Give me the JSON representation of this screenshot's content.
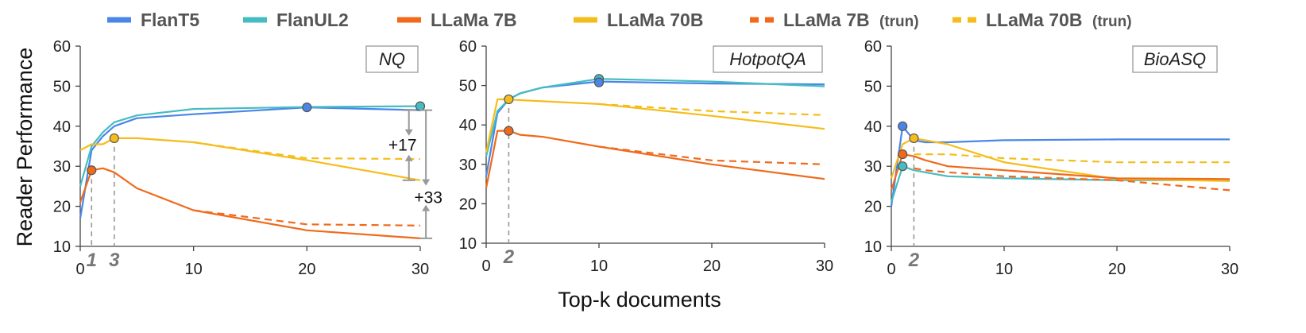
{
  "chart_data": {
    "type": "line",
    "xlabel": "Top-k documents",
    "ylabel": "Reader Performance",
    "legend_position": "top",
    "legend": [
      {
        "name": "FlanT5",
        "color": "#4a86e8",
        "dashed": false,
        "suffix": ""
      },
      {
        "name": "FlanUL2",
        "color": "#45bcc2",
        "dashed": false,
        "suffix": ""
      },
      {
        "name": "LLaMa 7B",
        "color": "#f06a1c",
        "dashed": false,
        "suffix": ""
      },
      {
        "name": "LLaMa 70B",
        "color": "#f5bd1b",
        "dashed": false,
        "suffix": ""
      },
      {
        "name": "LLaMa 7B",
        "color": "#f06a1c",
        "dashed": true,
        "suffix": "(trun)"
      },
      {
        "name": "LLaMa 70B",
        "color": "#f5bd1b",
        "dashed": true,
        "suffix": "(trun)"
      }
    ],
    "panels": [
      {
        "title": "NQ",
        "xlim": [
          0,
          30
        ],
        "ylim": [
          10,
          60
        ],
        "xticks": [
          0,
          10,
          20,
          30
        ],
        "yticks": [
          10,
          20,
          30,
          40,
          50,
          60
        ],
        "series": [
          {
            "color": "#4a86e8",
            "dashed": false,
            "x": [
              0,
              1,
              2,
              3,
              5,
              10,
              20,
              30
            ],
            "y": [
              17,
              34,
              37.5,
              40,
              42,
              43,
              44.7,
              44
            ]
          },
          {
            "color": "#45bcc2",
            "dashed": false,
            "x": [
              0,
              1,
              2,
              3,
              5,
              10,
              20,
              30
            ],
            "y": [
              25,
              35,
              38.5,
              41,
              42.7,
              44.3,
              44.8,
              45
            ]
          },
          {
            "color": "#f5bd1b",
            "dashed": false,
            "x": [
              0,
              1,
              2,
              3,
              5,
              10,
              20,
              30
            ],
            "y": [
              34,
              35.5,
              35.5,
              37,
              37,
              36,
              31.5,
              26.5
            ]
          },
          {
            "color": "#f06a1c",
            "dashed": false,
            "x": [
              0,
              1,
              2,
              3,
              5,
              10,
              20,
              30
            ],
            "y": [
              21,
              29,
              29.5,
              28.5,
              24.5,
              19,
              14,
              12
            ]
          },
          {
            "color": "#f06a1c",
            "dashed": true,
            "x": [
              10,
              20,
              30
            ],
            "y": [
              19,
              15.5,
              15.2
            ]
          },
          {
            "color": "#f5bd1b",
            "dashed": true,
            "x": [
              10,
              20,
              30
            ],
            "y": [
              36,
              32,
              31.8
            ]
          }
        ],
        "markers": [
          {
            "x": 1,
            "y": 29,
            "color": "#f06a1c"
          },
          {
            "x": 3,
            "y": 37,
            "color": "#f5bd1b"
          },
          {
            "x": 20,
            "y": 44.7,
            "color": "#4a86e8"
          },
          {
            "x": 30,
            "y": 45,
            "color": "#45bcc2"
          }
        ],
        "k_lines": [
          {
            "x": 1,
            "y": 29,
            "label": "1"
          },
          {
            "x": 3,
            "y": 37,
            "label": "3"
          }
        ],
        "annotations": [
          {
            "text": "+17",
            "x": 29,
            "y_from": 44,
            "y_to": 26.5
          },
          {
            "text": "+33",
            "x": 30.5,
            "y_from": 44,
            "y_to": 12
          }
        ]
      },
      {
        "title": "HotpotQA",
        "xlim": [
          0,
          30
        ],
        "ylim": [
          10,
          60
        ],
        "xticks": [
          0,
          10,
          20,
          30
        ],
        "yticks": [
          10,
          20,
          30,
          40,
          50,
          60
        ],
        "series": [
          {
            "color": "#4a86e8",
            "dashed": false,
            "x": [
              0,
              1,
              2,
              3,
              5,
              10,
              20,
              30
            ],
            "y": [
              27,
              43,
              46.5,
              48,
              49.5,
              51,
              50.5,
              50.3
            ]
          },
          {
            "color": "#45bcc2",
            "dashed": false,
            "x": [
              0,
              1,
              2,
              3,
              5,
              10,
              20,
              30
            ],
            "y": [
              32,
              43.5,
              46.5,
              48,
              49.5,
              51.7,
              51,
              49.8
            ]
          },
          {
            "color": "#f5bd1b",
            "dashed": false,
            "x": [
              0,
              1,
              2,
              3,
              5,
              10,
              20,
              30
            ],
            "y": [
              33,
              46.5,
              46.5,
              46.3,
              46,
              45.3,
              42.3,
              39
            ]
          },
          {
            "color": "#f06a1c",
            "dashed": false,
            "x": [
              0,
              1,
              2,
              3,
              5,
              10,
              20,
              30
            ],
            "y": [
              24,
              38.5,
              38.5,
              37.5,
              37,
              34.5,
              30,
              26.3
            ]
          },
          {
            "color": "#f06a1c",
            "dashed": true,
            "x": [
              10,
              20,
              30
            ],
            "y": [
              34.5,
              31,
              30
            ]
          },
          {
            "color": "#f5bd1b",
            "dashed": true,
            "x": [
              10,
              20,
              30
            ],
            "y": [
              45.3,
              43.5,
              42.5
            ]
          }
        ],
        "markers": [
          {
            "x": 2,
            "y": 38.5,
            "color": "#f06a1c"
          },
          {
            "x": 2,
            "y": 46.5,
            "color": "#f5bd1b"
          },
          {
            "x": 10,
            "y": 51.7,
            "color": "#45bcc2"
          },
          {
            "x": 10,
            "y": 50.8,
            "color": "#4a86e8"
          }
        ],
        "k_lines": [
          {
            "x": 2,
            "y": 46.5,
            "label": "2"
          }
        ],
        "annotations": []
      },
      {
        "title": "BioASQ",
        "xlim": [
          0,
          30
        ],
        "ylim": [
          10,
          60
        ],
        "xticks": [
          0,
          10,
          20,
          30
        ],
        "yticks": [
          10,
          20,
          30,
          40,
          50,
          60
        ],
        "series": [
          {
            "color": "#4a86e8",
            "dashed": false,
            "x": [
              0,
              1,
              2,
              3,
              5,
              10,
              20,
              30
            ],
            "y": [
              20,
              40,
              36.5,
              36,
              36,
              36.5,
              36.7,
              36.7
            ]
          },
          {
            "color": "#45bcc2",
            "dashed": false,
            "x": [
              0,
              1,
              2,
              3,
              5,
              10,
              20,
              30
            ],
            "y": [
              21,
              30,
              29,
              28.5,
              27.5,
              27,
              26.5,
              26.5
            ]
          },
          {
            "color": "#f5bd1b",
            "dashed": false,
            "x": [
              0,
              1,
              2,
              3,
              5,
              10,
              20,
              30
            ],
            "y": [
              27,
              35.5,
              37,
              36.5,
              35.5,
              31,
              26.8,
              26.3
            ]
          },
          {
            "color": "#f06a1c",
            "dashed": false,
            "x": [
              0,
              1,
              2,
              3,
              5,
              10,
              20,
              30
            ],
            "y": [
              24,
              33,
              32.5,
              31.5,
              30,
              29,
              27,
              26.8
            ]
          },
          {
            "color": "#f06a1c",
            "dashed": true,
            "x": [
              2,
              3,
              5,
              10,
              20,
              30
            ],
            "y": [
              29.5,
              29,
              28.5,
              27.5,
              26.5,
              24
            ]
          },
          {
            "color": "#f5bd1b",
            "dashed": true,
            "x": [
              2,
              3,
              5,
              10,
              20,
              30
            ],
            "y": [
              33,
              33,
              33,
              32,
              31,
              31
            ]
          }
        ],
        "markers": [
          {
            "x": 1,
            "y": 40,
            "color": "#4a86e8"
          },
          {
            "x": 1,
            "y": 33,
            "color": "#f06a1c"
          },
          {
            "x": 1,
            "y": 30,
            "color": "#45bcc2"
          },
          {
            "x": 2,
            "y": 37,
            "color": "#f5bd1b"
          }
        ],
        "k_lines": [
          {
            "x": 2,
            "y": 37,
            "label": "2"
          }
        ],
        "annotations": []
      }
    ]
  }
}
